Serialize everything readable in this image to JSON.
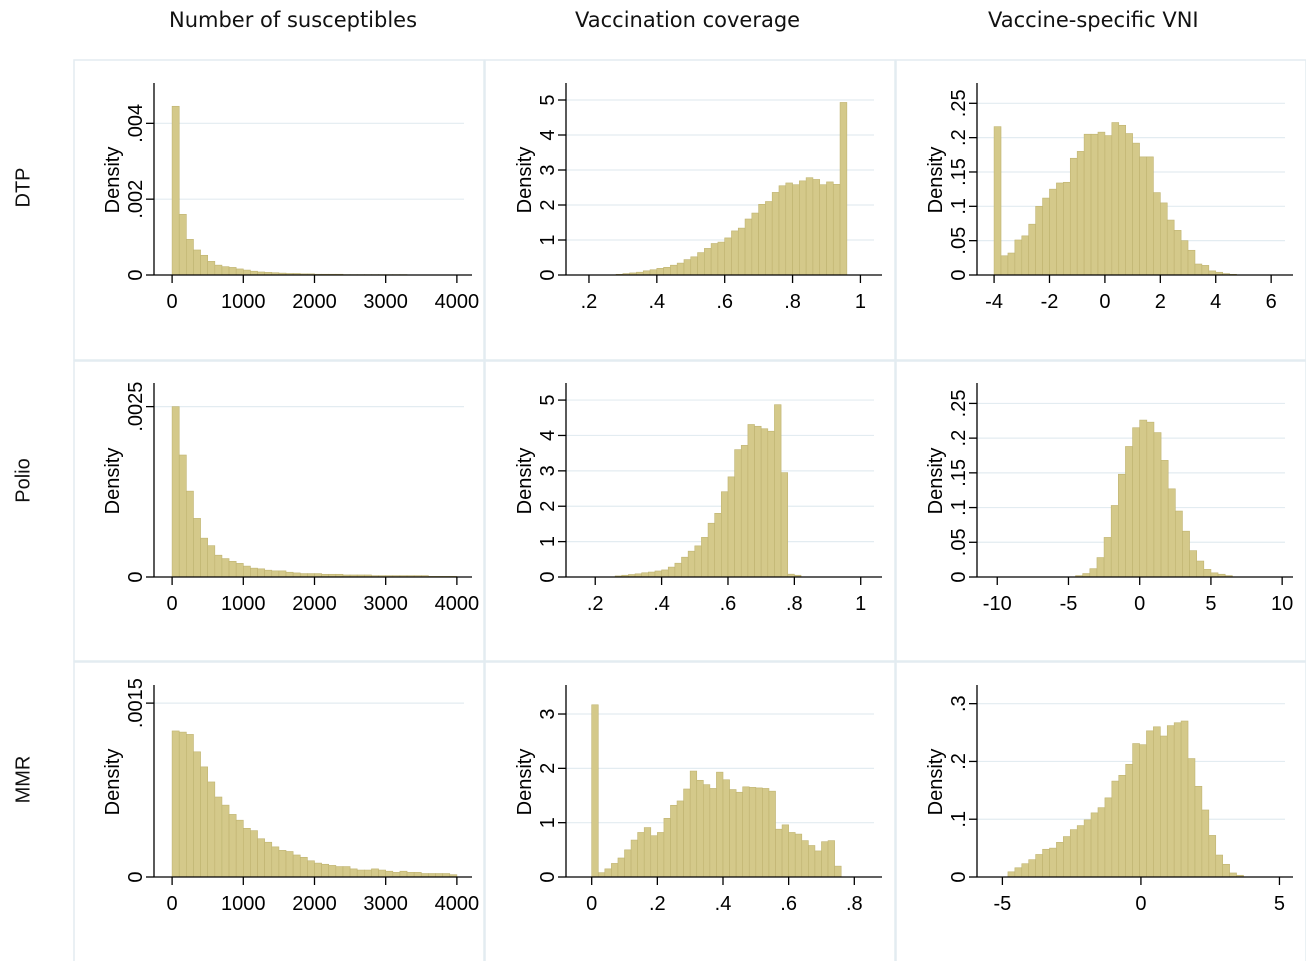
{
  "column_titles": [
    "Number of susceptibles",
    "Vaccination coverage",
    "Vaccine-specific VNI"
  ],
  "row_labels": [
    "DTP",
    "Polio",
    "MMR"
  ],
  "style": {
    "bar_fill": "#d4c98a",
    "bar_stroke": "#bfb370",
    "grid_color": "#e3ecf1",
    "panel_border": "#e3ecf1",
    "axis_color": "#000000"
  },
  "chart_data": [
    {
      "panel": "DTP / Number of susceptibles",
      "type": "bar",
      "ylabel": "Density",
      "xticks": [
        0,
        1000,
        2000,
        3000,
        4000
      ],
      "yticks": [
        0,
        0.002,
        0.004
      ],
      "yticklabels": [
        "0",
        ".002",
        ".004"
      ],
      "xlim": [
        -170,
        4100
      ],
      "ylim": [
        0,
        0.0048
      ],
      "bin_start": 0,
      "bin_width": 100,
      "values": [
        0.00445,
        0.0016,
        0.00094,
        0.00066,
        0.00052,
        0.00036,
        0.00026,
        0.00022,
        0.0002,
        0.00016,
        0.00013,
        0.0001,
        8e-05,
        7e-05,
        6e-05,
        5e-05,
        4e-05,
        4e-05,
        3e-05,
        3e-05,
        2e-05,
        2e-05,
        2e-05,
        2e-05,
        1e-05,
        1e-05,
        1e-05,
        1e-05,
        1e-05,
        1e-05,
        1e-05,
        1e-05,
        1e-05,
        5e-06,
        5e-06,
        5e-06,
        5e-06,
        5e-06,
        5e-06,
        5e-06
      ]
    },
    {
      "panel": "DTP / Vaccination coverage",
      "type": "bar",
      "ylabel": "Density",
      "xticks": [
        0.2,
        0.4,
        0.6,
        0.8,
        1
      ],
      "xticklabels": [
        ".2",
        ".4",
        ".6",
        ".8",
        "1"
      ],
      "yticks": [
        0,
        1,
        2,
        3,
        4,
        5
      ],
      "yticklabels": [
        "0",
        "1",
        "2",
        "3",
        "4",
        "5"
      ],
      "xlim": [
        0.15,
        1.04
      ],
      "ylim": [
        0,
        5.2
      ],
      "bin_start": 0.28,
      "bin_width": 0.02,
      "values": [
        0.02,
        0.04,
        0.06,
        0.08,
        0.12,
        0.15,
        0.19,
        0.22,
        0.28,
        0.34,
        0.44,
        0.52,
        0.64,
        0.76,
        0.9,
        0.94,
        1.06,
        1.26,
        1.34,
        1.6,
        1.77,
        2.02,
        2.1,
        2.36,
        2.55,
        2.63,
        2.58,
        2.69,
        2.78,
        2.73,
        2.58,
        2.66,
        2.59,
        4.93,
        0.0,
        0.0
      ]
    },
    {
      "panel": "DTP / Vaccine-specific VNI",
      "type": "bar",
      "ylabel": "Density",
      "xticks": [
        -4,
        -2,
        0,
        2,
        4,
        6
      ],
      "xticklabels": [
        "-4",
        "-2",
        "0",
        "2",
        "4",
        "6"
      ],
      "yticks": [
        0,
        0.05,
        0.1,
        0.15,
        0.2,
        0.25
      ],
      "yticklabels": [
        "0",
        ".05",
        ".1",
        ".15",
        ".2",
        ".25"
      ],
      "xlim": [
        -4.4,
        6.5
      ],
      "ylim": [
        0,
        0.265
      ],
      "bin_start": -4,
      "bin_width": 0.25,
      "values": [
        0.216,
        0.028,
        0.032,
        0.051,
        0.057,
        0.074,
        0.1,
        0.112,
        0.125,
        0.134,
        0.135,
        0.17,
        0.18,
        0.205,
        0.205,
        0.208,
        0.203,
        0.222,
        0.218,
        0.206,
        0.192,
        0.172,
        0.172,
        0.12,
        0.105,
        0.08,
        0.065,
        0.05,
        0.036,
        0.016,
        0.014,
        0.006,
        0.004,
        0.002,
        0.001
      ]
    },
    {
      "panel": "Polio / Number of susceptibles",
      "type": "bar",
      "ylabel": "Density",
      "xticks": [
        0,
        1000,
        2000,
        3000,
        4000
      ],
      "yticks": [
        0,
        0.0025
      ],
      "yticklabels": [
        "0",
        ".0025"
      ],
      "xlim": [
        -170,
        4100
      ],
      "ylim": [
        0,
        0.0027
      ],
      "bin_start": 0,
      "bin_width": 100,
      "values": [
        0.0025,
        0.00179,
        0.00126,
        0.00086,
        0.00057,
        0.00046,
        0.00032,
        0.00027,
        0.00023,
        0.0002,
        0.00016,
        0.00013,
        0.00012,
        0.0001,
        9e-05,
        9e-05,
        7e-05,
        6e-05,
        5e-05,
        5e-05,
        5e-05,
        4e-05,
        4e-05,
        4e-05,
        3e-05,
        3e-05,
        3e-05,
        3e-05,
        2e-05,
        2e-05,
        2e-05,
        2e-05,
        2e-05,
        2e-05,
        2e-05,
        2e-05,
        1e-05,
        1e-05,
        1e-05,
        1e-05
      ]
    },
    {
      "panel": "Polio / Vaccination coverage",
      "type": "bar",
      "ylabel": "Density",
      "xticks": [
        0.2,
        0.4,
        0.6,
        0.8,
        1
      ],
      "xticklabels": [
        ".2",
        ".4",
        ".6",
        ".8",
        "1"
      ],
      "yticks": [
        0,
        1,
        2,
        3,
        4,
        5
      ],
      "yticklabels": [
        "0",
        "1",
        "2",
        "3",
        "4",
        "5"
      ],
      "xlim": [
        0.13,
        1.04
      ],
      "ylim": [
        0,
        5.2
      ],
      "bin_start": 0.26,
      "bin_width": 0.02,
      "values": [
        0.03,
        0.05,
        0.07,
        0.09,
        0.12,
        0.14,
        0.17,
        0.2,
        0.28,
        0.39,
        0.56,
        0.73,
        0.88,
        1.12,
        1.52,
        1.8,
        2.41,
        2.83,
        3.6,
        3.72,
        4.31,
        4.26,
        4.19,
        4.12,
        4.87,
        2.95,
        0.08,
        0.05
      ]
    },
    {
      "panel": "Polio / Vaccine-specific VNI",
      "type": "bar",
      "ylabel": "Density",
      "xticks": [
        -10,
        -5,
        0,
        5,
        10
      ],
      "xticklabels": [
        "-10",
        "-5",
        "0",
        "5",
        "10"
      ],
      "yticks": [
        0,
        0.05,
        0.1,
        0.15,
        0.2,
        0.25
      ],
      "yticklabels": [
        "0",
        ".05",
        ".1",
        ".15",
        ".2",
        ".25"
      ],
      "xlim": [
        -11,
        10.2
      ],
      "ylim": [
        0,
        0.265
      ],
      "bin_start": -4.5,
      "bin_width": 0.5,
      "values": [
        0.002,
        0.005,
        0.012,
        0.028,
        0.057,
        0.103,
        0.148,
        0.188,
        0.215,
        0.226,
        0.223,
        0.208,
        0.168,
        0.127,
        0.095,
        0.066,
        0.038,
        0.023,
        0.011,
        0.006,
        0.004,
        0.002
      ]
    },
    {
      "panel": "MMR / Number of susceptibles",
      "type": "bar",
      "ylabel": "Density",
      "xticks": [
        0,
        1000,
        2000,
        3000,
        4000
      ],
      "yticks": [
        0,
        0.0015
      ],
      "yticklabels": [
        "0",
        ".0015"
      ],
      "xlim": [
        -170,
        4100
      ],
      "ylim": [
        0,
        0.00157
      ],
      "bin_start": 0,
      "bin_width": 100,
      "values": [
        0.00126,
        0.00125,
        0.00123,
        0.00108,
        0.00095,
        0.00082,
        0.00069,
        0.00062,
        0.00054,
        0.00049,
        0.00042,
        0.0004,
        0.00033,
        0.0003,
        0.00026,
        0.00023,
        0.00022,
        0.00019,
        0.00017,
        0.00014,
        0.00012,
        0.00011,
        0.0001,
        9e-05,
        9e-05,
        7e-05,
        6e-05,
        6e-05,
        7e-05,
        6e-05,
        5e-05,
        4e-05,
        5e-05,
        4e-05,
        4e-05,
        3e-05,
        3e-05,
        3e-05,
        3e-05,
        2e-05
      ]
    },
    {
      "panel": "MMR / Vaccination coverage",
      "type": "bar",
      "ylabel": "Density",
      "xticks": [
        0,
        0.2,
        0.4,
        0.6,
        0.8
      ],
      "xticklabels": [
        "0",
        ".2",
        ".4",
        ".6",
        ".8"
      ],
      "yticks": [
        0,
        1,
        2,
        3
      ],
      "yticklabels": [
        "0",
        "1",
        "2",
        "3"
      ],
      "xlim": [
        -0.06,
        0.86
      ],
      "ylim": [
        0,
        3.35
      ],
      "bin_start": 0,
      "bin_width": 0.02,
      "values": [
        3.17,
        0.08,
        0.15,
        0.25,
        0.35,
        0.5,
        0.68,
        0.82,
        0.91,
        0.76,
        0.82,
        1.08,
        1.32,
        1.4,
        1.62,
        1.95,
        1.78,
        1.7,
        1.63,
        1.93,
        1.79,
        1.61,
        1.56,
        1.66,
        1.65,
        1.64,
        1.63,
        1.58,
        0.88,
        0.96,
        0.82,
        0.79,
        0.67,
        0.58,
        0.48,
        0.65,
        0.67,
        0.2
      ]
    },
    {
      "panel": "MMR / Vaccine-specific VNI",
      "type": "bar",
      "ylabel": "Density",
      "xticks": [
        -5,
        0,
        5
      ],
      "xticklabels": [
        "-5",
        "0",
        "5"
      ],
      "yticks": [
        0,
        0.1,
        0.2,
        0.3
      ],
      "yticklabels": [
        "0",
        ".1",
        ".2",
        ".3"
      ],
      "xlim": [
        -5.7,
        5.2
      ],
      "ylim": [
        0,
        0.315
      ],
      "bin_start": -4.8,
      "bin_width": 0.25,
      "values": [
        0.009,
        0.016,
        0.023,
        0.03,
        0.039,
        0.048,
        0.05,
        0.06,
        0.07,
        0.082,
        0.089,
        0.099,
        0.111,
        0.12,
        0.137,
        0.166,
        0.176,
        0.195,
        0.231,
        0.229,
        0.253,
        0.26,
        0.244,
        0.262,
        0.267,
        0.27,
        0.205,
        0.157,
        0.116,
        0.072,
        0.038,
        0.022,
        0.007,
        0.003,
        0.0
      ]
    }
  ]
}
